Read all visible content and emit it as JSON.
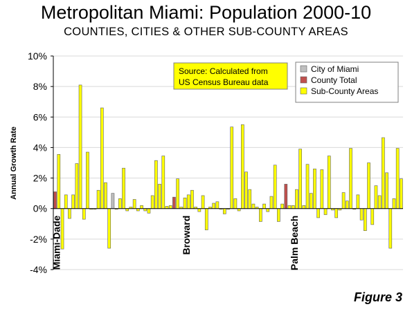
{
  "page": {
    "title": "Metropolitan Miami: Population 2000-10",
    "subtitle": "COUNTIES, CITIES & OTHER SUB-COUNTY AREAS",
    "figure_label": "Figure 3"
  },
  "colors": {
    "sub_county": "#ffff00",
    "county_total": "#c0504d",
    "city": "#bfbfbf",
    "source_box": "#ffff00",
    "gridline": "#d9d9d9"
  },
  "chart_data": {
    "type": "bar",
    "title": "Metropolitan Miami: Population 2000-10",
    "subtitle": "COUNTIES, CITIES & OTHER SUB-COUNTY AREAS",
    "ylabel": "Annual Growth Rate",
    "xlabel": "",
    "ylim": [
      -4,
      10
    ],
    "yticks": [
      "-4%",
      "-2%",
      "0%",
      "2%",
      "4%",
      "6%",
      "8%",
      "10%"
    ],
    "ytick_values": [
      -4,
      -2,
      0,
      2,
      4,
      6,
      8,
      10
    ],
    "grid": true,
    "legend_position": "top-right",
    "legend": [
      {
        "key": "city",
        "label": "City of Miami"
      },
      {
        "key": "county",
        "label": "County Total"
      },
      {
        "key": "sub",
        "label": "Sub-County Areas"
      }
    ],
    "annotation": "Source: Calculated from US Census Bureau data",
    "county_labels": [
      {
        "label": "Miami-Dade",
        "at_bar": 0
      },
      {
        "label": "Broward",
        "at_bar": 36
      },
      {
        "label": "Palm Beach",
        "at_bar": 66
      }
    ],
    "series": [
      {
        "key": "county",
        "name": "County Total",
        "values": [
          1.1,
          0.75,
          1.6
        ]
      },
      {
        "key": "city",
        "name": "City of Miami",
        "values": [
          1.0
        ]
      }
    ],
    "bars": [
      {
        "s": "county",
        "v": 1.1
      },
      {
        "s": "sub",
        "v": 3.55
      },
      {
        "s": "sub",
        "v": -2.65
      },
      {
        "s": "sub",
        "v": 0.9
      },
      {
        "s": "sub",
        "v": -0.65
      },
      {
        "s": "sub",
        "v": 0.9
      },
      {
        "s": "sub",
        "v": 2.95
      },
      {
        "s": "sub",
        "v": 8.1
      },
      {
        "s": "sub",
        "v": -0.7
      },
      {
        "s": "sub",
        "v": 3.7
      },
      {
        "s": "sub",
        "v": -0.05
      },
      {
        "s": "sub",
        "v": -0.05
      },
      {
        "s": "sub",
        "v": 1.2
      },
      {
        "s": "sub",
        "v": 6.6
      },
      {
        "s": "sub",
        "v": 1.7
      },
      {
        "s": "sub",
        "v": -2.6
      },
      {
        "s": "city",
        "v": 1.0
      },
      {
        "s": "sub",
        "v": -0.05
      },
      {
        "s": "sub",
        "v": 0.65
      },
      {
        "s": "sub",
        "v": 2.65
      },
      {
        "s": "sub",
        "v": -0.15
      },
      {
        "s": "sub",
        "v": 0.1
      },
      {
        "s": "sub",
        "v": 0.6
      },
      {
        "s": "sub",
        "v": -0.15
      },
      {
        "s": "sub",
        "v": 0.2
      },
      {
        "s": "sub",
        "v": -0.15
      },
      {
        "s": "sub",
        "v": -0.3
      },
      {
        "s": "sub",
        "v": 0.85
      },
      {
        "s": "sub",
        "v": 3.15
      },
      {
        "s": "sub",
        "v": 1.6
      },
      {
        "s": "sub",
        "v": 3.45
      },
      {
        "s": "sub",
        "v": 0.15
      },
      {
        "s": "sub",
        "v": 0.2
      },
      {
        "s": "county",
        "v": 0.75
      },
      {
        "s": "sub",
        "v": 1.95
      },
      {
        "s": "sub",
        "v": 0.1
      },
      {
        "s": "sub",
        "v": 0.7
      },
      {
        "s": "sub",
        "v": 0.9
      },
      {
        "s": "sub",
        "v": 1.2
      },
      {
        "s": "sub",
        "v": 0.1
      },
      {
        "s": "sub",
        "v": -0.2
      },
      {
        "s": "sub",
        "v": 0.85
      },
      {
        "s": "sub",
        "v": -1.4
      },
      {
        "s": "sub",
        "v": 0.1
      },
      {
        "s": "sub",
        "v": 0.35
      },
      {
        "s": "sub",
        "v": 0.45
      },
      {
        "s": "sub",
        "v": -0.05
      },
      {
        "s": "sub",
        "v": -0.35
      },
      {
        "s": "sub",
        "v": -0.05
      },
      {
        "s": "sub",
        "v": 5.35
      },
      {
        "s": "sub",
        "v": 0.65
      },
      {
        "s": "sub",
        "v": -0.15
      },
      {
        "s": "sub",
        "v": 5.5
      },
      {
        "s": "sub",
        "v": 2.4
      },
      {
        "s": "sub",
        "v": 1.25
      },
      {
        "s": "sub",
        "v": 0.3
      },
      {
        "s": "sub",
        "v": 0.1
      },
      {
        "s": "sub",
        "v": -0.85
      },
      {
        "s": "sub",
        "v": 0.3
      },
      {
        "s": "sub",
        "v": -0.2
      },
      {
        "s": "sub",
        "v": 0.8
      },
      {
        "s": "sub",
        "v": 2.85
      },
      {
        "s": "sub",
        "v": -0.85
      },
      {
        "s": "sub",
        "v": 0.3
      },
      {
        "s": "county",
        "v": 1.6
      },
      {
        "s": "sub",
        "v": 0.2
      },
      {
        "s": "sub",
        "v": 0.2
      },
      {
        "s": "sub",
        "v": 1.25
      },
      {
        "s": "sub",
        "v": 3.9
      },
      {
        "s": "sub",
        "v": 0.2
      },
      {
        "s": "sub",
        "v": 2.9
      },
      {
        "s": "sub",
        "v": 1.0
      },
      {
        "s": "sub",
        "v": 2.6
      },
      {
        "s": "sub",
        "v": -0.6
      },
      {
        "s": "sub",
        "v": 2.55
      },
      {
        "s": "sub",
        "v": -0.4
      },
      {
        "s": "sub",
        "v": 3.45
      },
      {
        "s": "sub",
        "v": -0.1
      },
      {
        "s": "sub",
        "v": -0.6
      },
      {
        "s": "sub",
        "v": -0.1
      },
      {
        "s": "sub",
        "v": 1.05
      },
      {
        "s": "sub",
        "v": 0.5
      },
      {
        "s": "sub",
        "v": 3.95
      },
      {
        "s": "sub",
        "v": -0.05
      },
      {
        "s": "sub",
        "v": 0.9
      },
      {
        "s": "sub",
        "v": -0.75
      },
      {
        "s": "sub",
        "v": -1.45
      },
      {
        "s": "sub",
        "v": 3.0
      },
      {
        "s": "sub",
        "v": -1.05
      },
      {
        "s": "sub",
        "v": 1.5
      },
      {
        "s": "sub",
        "v": 0.85
      },
      {
        "s": "sub",
        "v": 4.65
      },
      {
        "s": "sub",
        "v": 2.35
      },
      {
        "s": "sub",
        "v": -2.6
      },
      {
        "s": "sub",
        "v": 0.65
      },
      {
        "s": "sub",
        "v": 3.95
      },
      {
        "s": "sub",
        "v": 1.95
      }
    ]
  }
}
